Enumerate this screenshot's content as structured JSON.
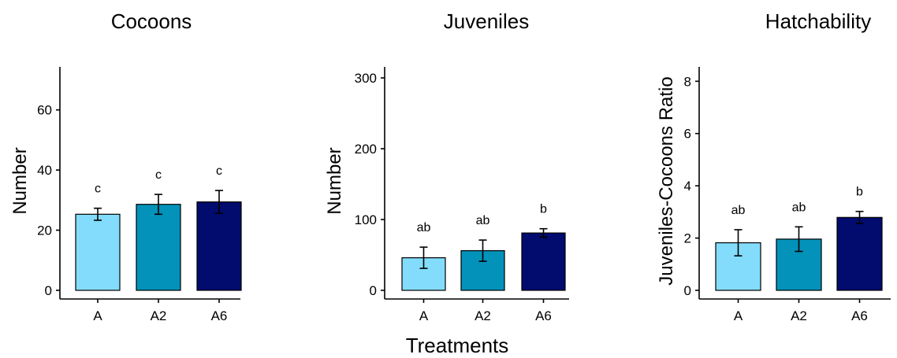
{
  "xlabel": "Treatments",
  "colors": {
    "A": "#83dcfb",
    "A2": "#0392ba",
    "A6": "#020b6e"
  },
  "chart_data": [
    {
      "type": "bar",
      "title": "Cocoons",
      "ylabel": "Number",
      "ylim": [
        0,
        73
      ],
      "yticks": [
        0,
        20,
        40,
        60
      ],
      "categories": [
        "A",
        "A2",
        "A6"
      ],
      "values": [
        25.3,
        28.6,
        29.4
      ],
      "errors": [
        2.0,
        3.3,
        3.8
      ],
      "letters": [
        "c",
        "c",
        "c"
      ],
      "grid": false
    },
    {
      "type": "bar",
      "title": "Juveniles",
      "ylabel": "Number",
      "ylim": [
        0,
        310
      ],
      "yticks": [
        0,
        100,
        200,
        300
      ],
      "categories": [
        "A",
        "A2",
        "A6"
      ],
      "values": [
        46,
        56,
        81
      ],
      "errors": [
        15,
        15,
        6
      ],
      "letters": [
        "ab",
        "ab",
        "b"
      ],
      "grid": false
    },
    {
      "type": "bar",
      "title": "Hatchability",
      "ylabel": "Juveniles-Cocoons Ratio",
      "ylim": [
        0,
        8.4
      ],
      "yticks": [
        0,
        2,
        4,
        6,
        8
      ],
      "categories": [
        "A",
        "A2",
        "A6"
      ],
      "values": [
        1.82,
        1.96,
        2.79
      ],
      "errors": [
        0.5,
        0.47,
        0.23
      ],
      "letters": [
        "ab",
        "ab",
        "b"
      ],
      "grid": false
    }
  ]
}
